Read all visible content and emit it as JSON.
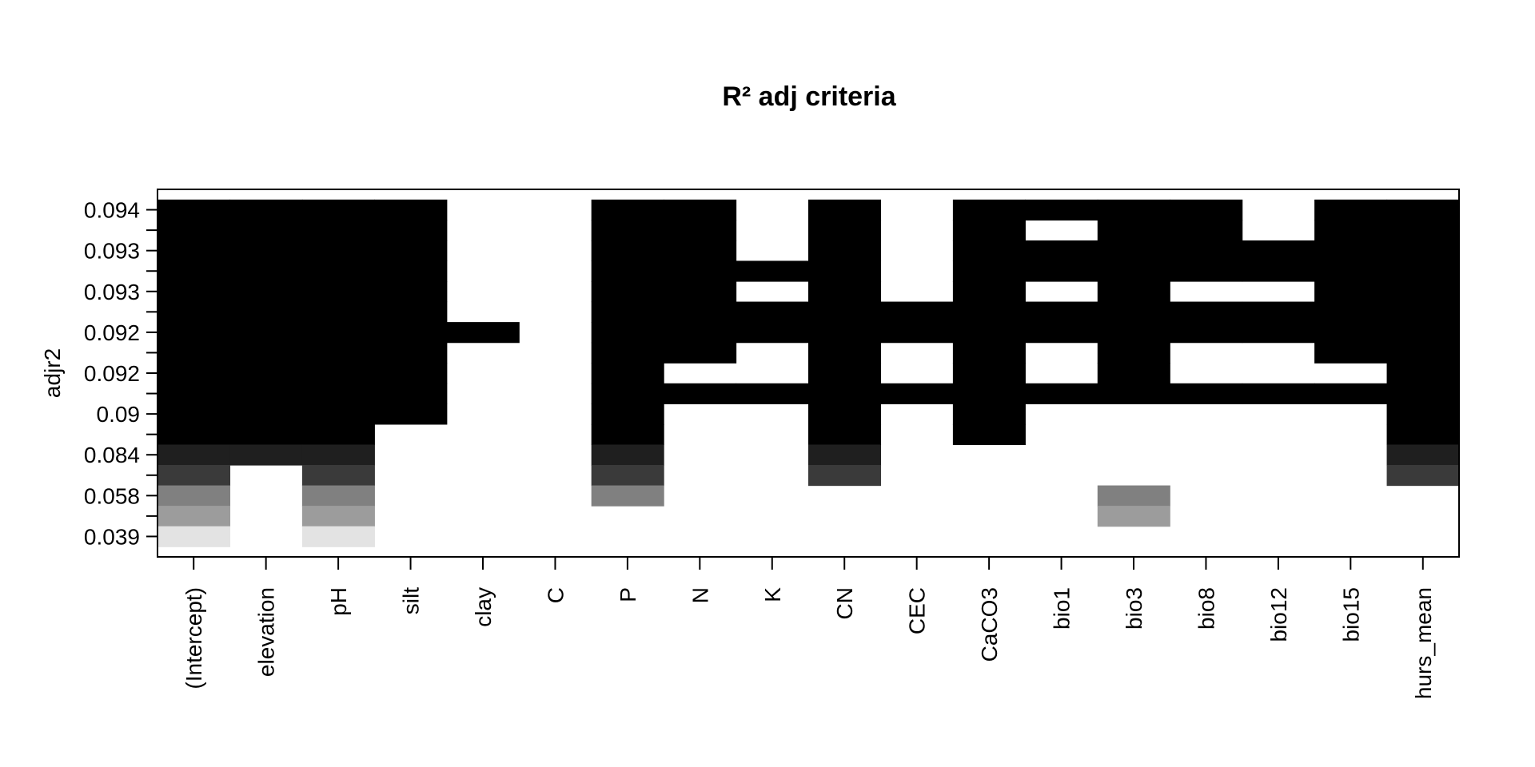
{
  "chart_data": {
    "type": "heatmap",
    "title": "R² adj criteria",
    "ylabel": "adjr2",
    "xlabel": "",
    "categories": [
      "(Intercept)",
      "elevation",
      "pH",
      "silt",
      "clay",
      "C",
      "P",
      "N",
      "K",
      "CN",
      "CEC",
      "CaCO3",
      "bio1",
      "bio3",
      "bio8",
      "bio12",
      "bio15",
      "hurs_mean"
    ],
    "y_tick_labels": [
      "0.094",
      "0.093",
      "0.093",
      "0.092",
      "0.092",
      "0.09",
      "0.084",
      "0.058",
      "0.039"
    ],
    "rows": [
      {
        "adjr2_label": "0.094",
        "fill": "#000000",
        "included": [
          1,
          1,
          1,
          1,
          0,
          0,
          1,
          1,
          0,
          1,
          0,
          1,
          1,
          1,
          1,
          0,
          1,
          1
        ]
      },
      {
        "adjr2_label": "",
        "fill": "#000000",
        "included": [
          1,
          1,
          1,
          1,
          0,
          0,
          1,
          1,
          0,
          1,
          0,
          1,
          0,
          1,
          1,
          0,
          1,
          1
        ]
      },
      {
        "adjr2_label": "0.093",
        "fill": "#000000",
        "included": [
          1,
          1,
          1,
          1,
          0,
          0,
          1,
          1,
          0,
          1,
          0,
          1,
          1,
          1,
          1,
          1,
          1,
          1
        ]
      },
      {
        "adjr2_label": "",
        "fill": "#000000",
        "included": [
          1,
          1,
          1,
          1,
          0,
          0,
          1,
          1,
          1,
          1,
          0,
          1,
          1,
          1,
          1,
          1,
          1,
          1
        ]
      },
      {
        "adjr2_label": "0.093",
        "fill": "#000000",
        "included": [
          1,
          1,
          1,
          1,
          0,
          0,
          1,
          1,
          0,
          1,
          0,
          1,
          0,
          1,
          0,
          0,
          1,
          1
        ]
      },
      {
        "adjr2_label": "",
        "fill": "#000000",
        "included": [
          1,
          1,
          1,
          1,
          0,
          0,
          1,
          1,
          1,
          1,
          1,
          1,
          1,
          1,
          1,
          1,
          1,
          1
        ]
      },
      {
        "adjr2_label": "0.092",
        "fill": "#000000",
        "included": [
          1,
          1,
          1,
          1,
          1,
          0,
          1,
          1,
          1,
          1,
          1,
          1,
          1,
          1,
          1,
          1,
          1,
          1
        ]
      },
      {
        "adjr2_label": "",
        "fill": "#000000",
        "included": [
          1,
          1,
          1,
          1,
          0,
          0,
          1,
          1,
          0,
          1,
          0,
          1,
          0,
          1,
          0,
          0,
          1,
          1
        ]
      },
      {
        "adjr2_label": "0.092",
        "fill": "#000000",
        "included": [
          1,
          1,
          1,
          1,
          0,
          0,
          1,
          0,
          0,
          1,
          0,
          1,
          0,
          1,
          0,
          0,
          0,
          1
        ]
      },
      {
        "adjr2_label": "",
        "fill": "#000000",
        "included": [
          1,
          1,
          1,
          1,
          0,
          0,
          1,
          1,
          1,
          1,
          1,
          1,
          1,
          1,
          1,
          1,
          1,
          1
        ]
      },
      {
        "adjr2_label": "0.09",
        "fill": "#000000",
        "included": [
          1,
          1,
          1,
          1,
          0,
          0,
          1,
          0,
          0,
          1,
          0,
          1,
          0,
          0,
          0,
          0,
          0,
          1
        ]
      },
      {
        "adjr2_label": "",
        "fill": "#000000",
        "included": [
          1,
          1,
          1,
          0,
          0,
          0,
          1,
          0,
          0,
          1,
          0,
          1,
          0,
          0,
          0,
          0,
          0,
          1
        ]
      },
      {
        "adjr2_label": "0.084",
        "fill": "#1f1f1f",
        "included": [
          1,
          1,
          1,
          0,
          0,
          0,
          1,
          0,
          0,
          1,
          0,
          0,
          0,
          0,
          0,
          0,
          0,
          1
        ]
      },
      {
        "adjr2_label": "",
        "fill": "#3a3a3a",
        "included": [
          1,
          0,
          1,
          0,
          0,
          0,
          1,
          0,
          0,
          1,
          0,
          0,
          0,
          0,
          0,
          0,
          0,
          1
        ]
      },
      {
        "adjr2_label": "0.058",
        "fill": "#808080",
        "included": [
          1,
          0,
          1,
          0,
          0,
          0,
          1,
          0,
          0,
          0,
          0,
          0,
          0,
          1,
          0,
          0,
          0,
          0
        ]
      },
      {
        "adjr2_label": "",
        "fill": "#9c9c9c",
        "included": [
          1,
          0,
          1,
          0,
          0,
          0,
          0,
          0,
          0,
          0,
          0,
          0,
          0,
          1,
          0,
          0,
          0,
          0
        ]
      },
      {
        "adjr2_label": "0.039",
        "fill": "#e3e3e3",
        "included": [
          1,
          0,
          1,
          0,
          0,
          0,
          0,
          0,
          0,
          0,
          0,
          0,
          0,
          0,
          0,
          0,
          0,
          0
        ]
      }
    ],
    "grid": false,
    "legend": "none"
  }
}
